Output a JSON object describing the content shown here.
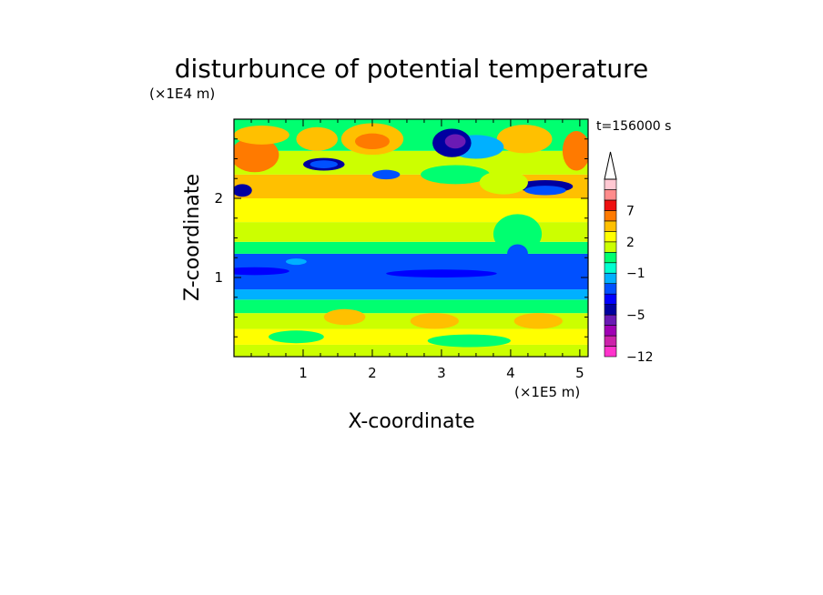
{
  "chart_data": {
    "type": "heatmap",
    "title": "disturbunce of potential temperature",
    "time_label": "t=156000 s",
    "xlabel": "X-coordinate",
    "ylabel": "Z-coordinate",
    "x_unit": "(×1E5 m)",
    "y_unit": "(×1E4 m)",
    "xlim": [
      0,
      5.12
    ],
    "ylim": [
      0,
      3.0
    ],
    "x_ticks": [
      1,
      2,
      3,
      4,
      5
    ],
    "y_ticks": [
      1,
      2
    ],
    "grid": false,
    "legend": "colorbar-right",
    "colorbar": {
      "levels": [
        -12,
        -10,
        -8,
        -6,
        -5,
        -4,
        -3,
        -2,
        -1,
        0,
        1,
        2,
        3,
        5,
        7,
        9,
        12
      ],
      "tick_labels": [
        "-12",
        "-5",
        "-1",
        "2",
        "7"
      ],
      "tick_values": [
        -12,
        -5,
        -1,
        2,
        7
      ],
      "colors": [
        "#ff33cc",
        "#cc22aa",
        "#a000b4",
        "#6a1ab4",
        "#0000a0",
        "#0000ff",
        "#0050ff",
        "#00b0ff",
        "#00ffd0",
        "#00ff70",
        "#ccff00",
        "#ffff00",
        "#ffc000",
        "#ff7a00",
        "#ee1010",
        "#ff8c8c",
        "#ffc8d2"
      ],
      "extend": "max"
    },
    "bands": [
      {
        "z": [
          0.0,
          0.15
        ],
        "color": "#ccff00"
      },
      {
        "z": [
          0.15,
          0.35
        ],
        "color": "#ffff00"
      },
      {
        "z": [
          0.35,
          0.55
        ],
        "color": "#ccff00"
      },
      {
        "z": [
          0.55,
          0.72
        ],
        "color": "#00ff70"
      },
      {
        "z": [
          0.72,
          0.85
        ],
        "color": "#00b0ff"
      },
      {
        "z": [
          0.85,
          1.3
        ],
        "color": "#0050ff"
      },
      {
        "z": [
          1.3,
          1.45
        ],
        "color": "#00ff70"
      },
      {
        "z": [
          1.45,
          1.7
        ],
        "color": "#ccff00"
      },
      {
        "z": [
          1.7,
          2.0
        ],
        "color": "#ffff00"
      },
      {
        "z": [
          2.0,
          2.3
        ],
        "color": "#ffc000"
      },
      {
        "z": [
          2.3,
          2.6
        ],
        "color": "#ccff00"
      },
      {
        "z": [
          2.6,
          3.0
        ],
        "color": "#00ff70"
      }
    ],
    "blobs": [
      {
        "x": 0.3,
        "z": 2.55,
        "rx": 0.35,
        "rz": 0.22,
        "color": "#ff7a00"
      },
      {
        "x": 0.4,
        "z": 2.8,
        "rx": 0.4,
        "rz": 0.12,
        "color": "#ffc000"
      },
      {
        "x": 1.2,
        "z": 2.75,
        "rx": 0.3,
        "rz": 0.15,
        "color": "#ffc000"
      },
      {
        "x": 2.0,
        "z": 2.75,
        "rx": 0.45,
        "rz": 0.2,
        "color": "#ffc000"
      },
      {
        "x": 2.0,
        "z": 2.72,
        "rx": 0.25,
        "rz": 0.1,
        "color": "#ff7a00"
      },
      {
        "x": 4.2,
        "z": 2.75,
        "rx": 0.4,
        "rz": 0.18,
        "color": "#ffc000"
      },
      {
        "x": 4.95,
        "z": 2.6,
        "rx": 0.2,
        "rz": 0.25,
        "color": "#ff7a00"
      },
      {
        "x": 3.0,
        "z": 2.95,
        "rx": 0.6,
        "rz": 0.12,
        "color": "#00ff70"
      },
      {
        "x": 3.5,
        "z": 2.65,
        "rx": 0.4,
        "rz": 0.15,
        "color": "#00b0ff"
      },
      {
        "x": 3.15,
        "z": 2.7,
        "rx": 0.28,
        "rz": 0.18,
        "color": "#0000a0"
      },
      {
        "x": 3.2,
        "z": 2.72,
        "rx": 0.15,
        "rz": 0.09,
        "color": "#6a1ab4"
      },
      {
        "x": 1.3,
        "z": 2.43,
        "rx": 0.3,
        "rz": 0.08,
        "color": "#0000a0"
      },
      {
        "x": 1.3,
        "z": 2.43,
        "rx": 0.2,
        "rz": 0.05,
        "color": "#0050ff"
      },
      {
        "x": 2.2,
        "z": 2.3,
        "rx": 0.2,
        "rz": 0.06,
        "color": "#0050ff"
      },
      {
        "x": 0.12,
        "z": 2.1,
        "rx": 0.14,
        "rz": 0.08,
        "color": "#0000a0"
      },
      {
        "x": 4.5,
        "z": 2.15,
        "rx": 0.4,
        "rz": 0.08,
        "color": "#0000a0"
      },
      {
        "x": 4.5,
        "z": 2.1,
        "rx": 0.3,
        "rz": 0.06,
        "color": "#0050ff"
      },
      {
        "x": 3.2,
        "z": 2.3,
        "rx": 0.5,
        "rz": 0.12,
        "color": "#00ff70"
      },
      {
        "x": 3.9,
        "z": 2.2,
        "rx": 0.35,
        "rz": 0.15,
        "color": "#ccff00"
      },
      {
        "x": 4.1,
        "z": 1.55,
        "rx": 0.35,
        "rz": 0.25,
        "color": "#00ff70"
      },
      {
        "x": 4.1,
        "z": 1.3,
        "rx": 0.15,
        "rz": 0.12,
        "color": "#0050ff"
      },
      {
        "x": 1.6,
        "z": 0.5,
        "rx": 0.3,
        "rz": 0.1,
        "color": "#ffc000"
      },
      {
        "x": 2.9,
        "z": 0.45,
        "rx": 0.35,
        "rz": 0.1,
        "color": "#ffc000"
      },
      {
        "x": 4.4,
        "z": 0.45,
        "rx": 0.35,
        "rz": 0.1,
        "color": "#ffc000"
      },
      {
        "x": 3.4,
        "z": 0.2,
        "rx": 0.6,
        "rz": 0.08,
        "color": "#00ff70"
      },
      {
        "x": 0.9,
        "z": 0.25,
        "rx": 0.4,
        "rz": 0.08,
        "color": "#00ff70"
      },
      {
        "x": 0.3,
        "z": 1.08,
        "rx": 0.5,
        "rz": 0.05,
        "color": "#0000ff"
      },
      {
        "x": 3.0,
        "z": 1.05,
        "rx": 0.8,
        "rz": 0.05,
        "color": "#0000ff"
      },
      {
        "x": 0.9,
        "z": 1.2,
        "rx": 0.15,
        "rz": 0.04,
        "color": "#00b0ff"
      }
    ]
  }
}
